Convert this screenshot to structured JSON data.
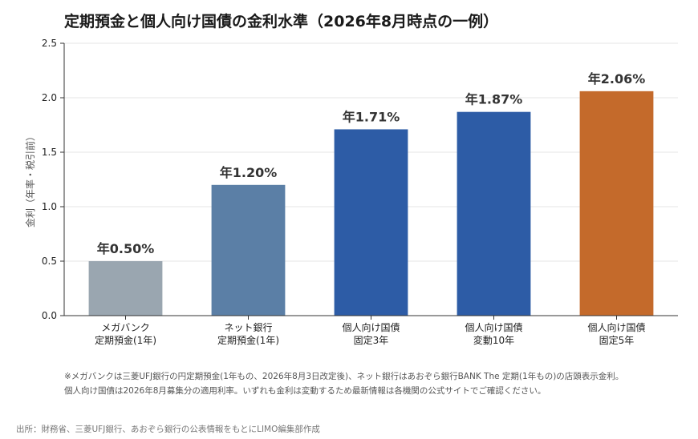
{
  "title": "定期預金と個人向け国債の金利水準（2026年8月時点の一例）",
  "chart_data": {
    "type": "bar",
    "title": "定期預金と個人向け国債の金利水準（2026年8月時点の一例）",
    "ylabel": "金利（年率・税引前）",
    "xlabel": "",
    "ylim": [
      0,
      2.5
    ],
    "yticks": [
      "0.0",
      "0.5",
      "1.0",
      "1.5",
      "2.0",
      "2.5"
    ],
    "grid": true,
    "categories": [
      [
        "メガバンク",
        "定期預金(1年)"
      ],
      [
        "ネット銀行",
        "定期預金(1年)"
      ],
      [
        "個人向け国債",
        "固定3年"
      ],
      [
        "個人向け国債",
        "変動10年"
      ],
      [
        "個人向け国債",
        "固定5年"
      ]
    ],
    "values": [
      0.5,
      1.2,
      1.71,
      1.87,
      2.06
    ],
    "data_labels": [
      "年0.50%",
      "年1.20%",
      "年1.71%",
      "年1.87%",
      "年2.06%"
    ],
    "colors": [
      "#9aa6b0",
      "#5b7fa6",
      "#2d5ca6",
      "#2d5ca6",
      "#c46a2b"
    ]
  },
  "notes": [
    "※メガバンクは三菱UFJ銀行の円定期預金(1年もの、2026年8月3日改定後)、ネット銀行はあおぞら銀行BANK The 定期(1年もの)の店頭表示金利。",
    "個人向け国債は2026年8月募集分の適用利率。いずれも金利は変動するため最新情報は各機関の公式サイトでご確認ください。"
  ],
  "source": "出所：財務省、三菱UFJ銀行、あおぞら銀行の公表情報をもとにLIMO編集部作成"
}
